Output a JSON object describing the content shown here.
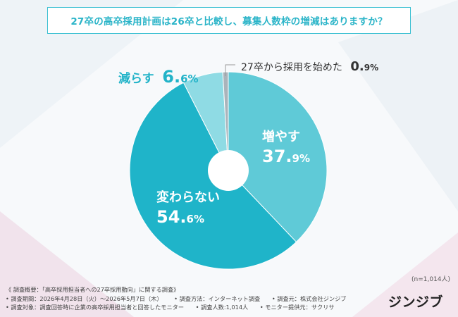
{
  "colors": {
    "increase": "#5fcad7",
    "unchanged": "#1fb4c9",
    "decrease": "#8fdbe4",
    "started": "#aab4bb",
    "title_border": "#3bc0d2",
    "title_text": "#2ab4c8",
    "label_decrease": "#22b3c8"
  },
  "title": "27卒の高卒採用計画は26卒と比較し、募集人数枠の増減はありますか？",
  "chart_data": {
    "type": "pie",
    "donut": true,
    "categories": [
      "増やす",
      "変わらない",
      "減らす",
      "27卒から採用を始めた"
    ],
    "values": [
      37.9,
      54.6,
      6.6,
      0.9
    ],
    "unit": "%",
    "title": "27卒の高卒採用計画は26卒と比較し、募集人数枠の増減はありますか？",
    "note": "(n=1,014人)"
  },
  "labels": {
    "increase": {
      "name": "増やす",
      "int": "37.",
      "dec": "9%"
    },
    "unchanged": {
      "name": "変わらない",
      "int": "54.",
      "dec": "6%"
    },
    "decrease": {
      "name": "減らす",
      "int": "6.",
      "dec": "6%"
    },
    "started": {
      "name": "27卒から採用を始めた",
      "int": "0.",
      "dec": "9%"
    }
  },
  "sample": "(n=1,014人)",
  "footer": {
    "line1": "《 調査概要：「高卒採用担当者への27卒採用動向」に関する調査》",
    "line2": [
      "• 調査期間：2026年4月28日（火）～2026年5月7日（木）",
      "• 調査方法：インターネット調査",
      "• 調査元：株式会社ジンジブ"
    ],
    "line3": [
      "• 調査対象：調査回答時に企業の高卒採用担当者と回答したモニター",
      "• 調査人数:1,014人",
      "• モニター提供元：サクリサ"
    ]
  },
  "logo": "ジンジブ"
}
